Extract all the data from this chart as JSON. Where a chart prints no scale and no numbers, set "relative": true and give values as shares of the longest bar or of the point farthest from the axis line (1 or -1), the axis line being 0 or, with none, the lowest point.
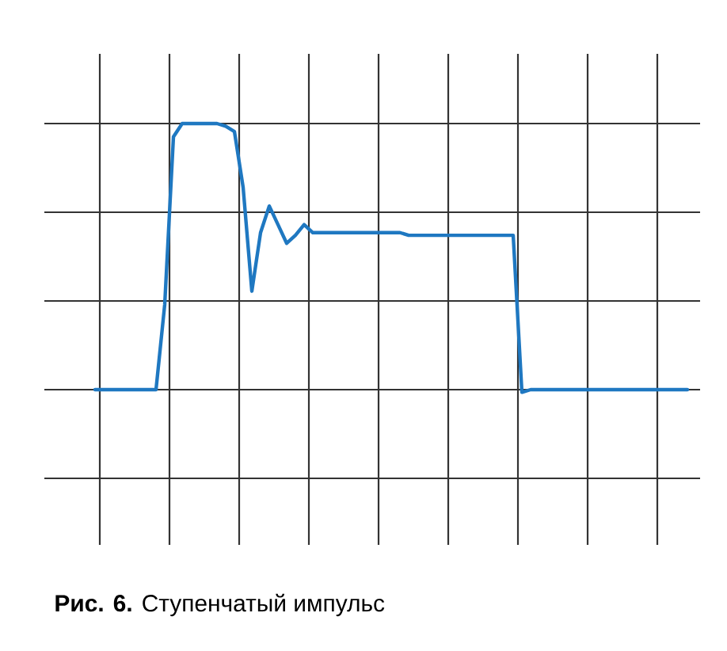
{
  "chart_data": {
    "type": "line",
    "relative": true,
    "grid": true,
    "color": "#1f78c1",
    "categories": [
      null,
      null,
      null,
      null,
      null,
      null,
      null,
      null,
      null,
      null,
      null,
      null,
      null,
      null,
      null,
      null,
      null,
      null,
      null,
      null,
      null,
      null,
      null,
      null,
      null,
      null,
      null,
      null,
      null,
      null,
      null,
      null,
      null,
      null,
      null,
      null,
      null,
      null,
      null,
      null,
      null,
      null,
      null,
      null,
      null,
      null,
      null,
      null,
      null,
      null,
      null,
      null,
      null,
      null,
      null,
      null,
      null,
      null,
      null,
      null,
      null,
      null,
      null,
      null,
      null,
      null,
      null,
      null,
      null
    ],
    "values": [
      0,
      0,
      0,
      0,
      0,
      0,
      0,
      0,
      0.32,
      0.95,
      1,
      1,
      1,
      1,
      1,
      0.99,
      0.97,
      0.76,
      0.37,
      0.59,
      0.69,
      0.62,
      0.55,
      0.58,
      0.62,
      0.59,
      0.59,
      0.59,
      0.59,
      0.59,
      0.59,
      0.59,
      0.59,
      0.59,
      0.59,
      0.59,
      0.58,
      0.58,
      0.58,
      0.58,
      0.58,
      0.58,
      0.58,
      0.58,
      0.58,
      0.58,
      0.58,
      0.58,
      0.58,
      -0.01,
      0,
      0,
      0,
      0,
      0,
      0,
      0,
      0,
      0,
      0,
      0,
      0,
      0,
      0,
      0,
      0,
      0,
      0,
      0
    ],
    "annotations": [
      "**Рис. 6.** Ступенчатый импульс"
    ]
  }
}
